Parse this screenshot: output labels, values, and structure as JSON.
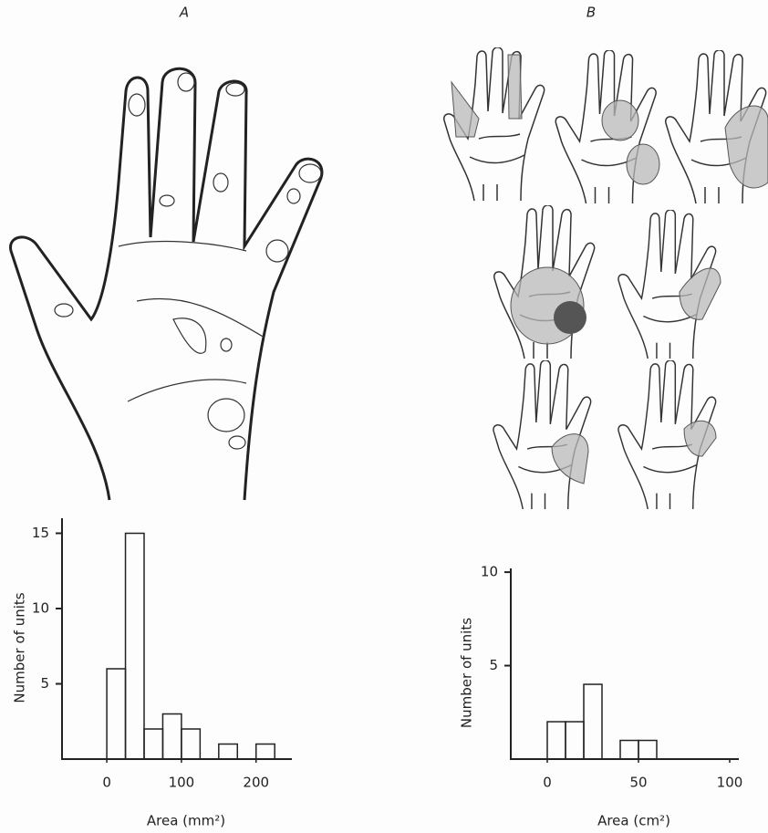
{
  "panels": [
    {
      "label": "A"
    },
    {
      "label": "B"
    }
  ],
  "chart_data": [
    {
      "type": "histogram",
      "bins": [
        0,
        25,
        50,
        75,
        100,
        125,
        150,
        175,
        200,
        225
      ],
      "values": [
        6,
        15,
        2,
        3,
        2,
        0,
        1,
        0,
        1
      ],
      "xlim": [
        -60,
        248
      ],
      "ylim": [
        0,
        16
      ],
      "xticks": [
        0,
        100,
        200
      ],
      "yticks": [
        5,
        10,
        15
      ],
      "xlabel": "Area (mm²)",
      "ylabel": "Number of units"
    },
    {
      "type": "histogram",
      "bins": [
        0,
        10,
        20,
        30,
        40,
        50,
        60
      ],
      "values": [
        2,
        2,
        4,
        0,
        1,
        1
      ],
      "xlim": [
        -20,
        105
      ],
      "ylim": [
        0,
        10.2
      ],
      "xticks": [
        0,
        50,
        100
      ],
      "yticks": [
        5,
        10
      ],
      "xlabel": "Area (cm²)",
      "ylabel": "Number of units"
    }
  ]
}
